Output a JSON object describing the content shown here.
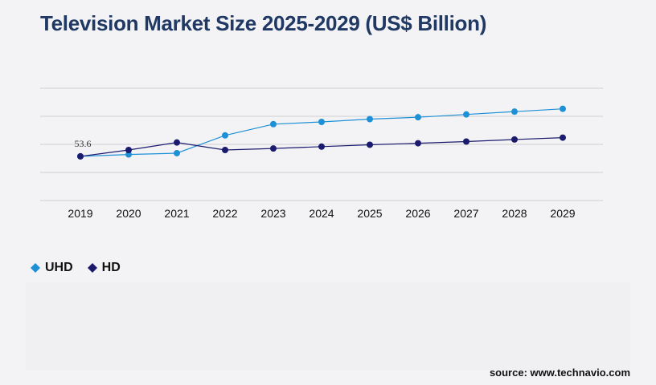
{
  "chart_data": {
    "type": "line",
    "title": "Television Market Size 2025-2029 (US$ Billion)",
    "categories": [
      "2019",
      "2020",
      "2021",
      "2022",
      "2023",
      "2024",
      "2025",
      "2026",
      "2027",
      "2028",
      "2029"
    ],
    "series": [
      {
        "name": "UHD",
        "color": "#1e90d6",
        "values": [
          53.6,
          54.6,
          55.3,
          64.8,
          70.8,
          72.0,
          73.5,
          74.5,
          76.0,
          77.5,
          79.0
        ]
      },
      {
        "name": "HD",
        "color": "#1a1a6e",
        "values": [
          53.6,
          57.0,
          61.0,
          57.0,
          57.8,
          58.8,
          59.8,
          60.6,
          61.5,
          62.6,
          63.6
        ]
      }
    ],
    "data_labels": [
      {
        "series": 0,
        "index": 0,
        "text": "53.6"
      }
    ],
    "ylim": [
      30,
      90
    ],
    "grid": true,
    "legend_position": "bottom-left"
  },
  "source": "source: www.technavio.com"
}
